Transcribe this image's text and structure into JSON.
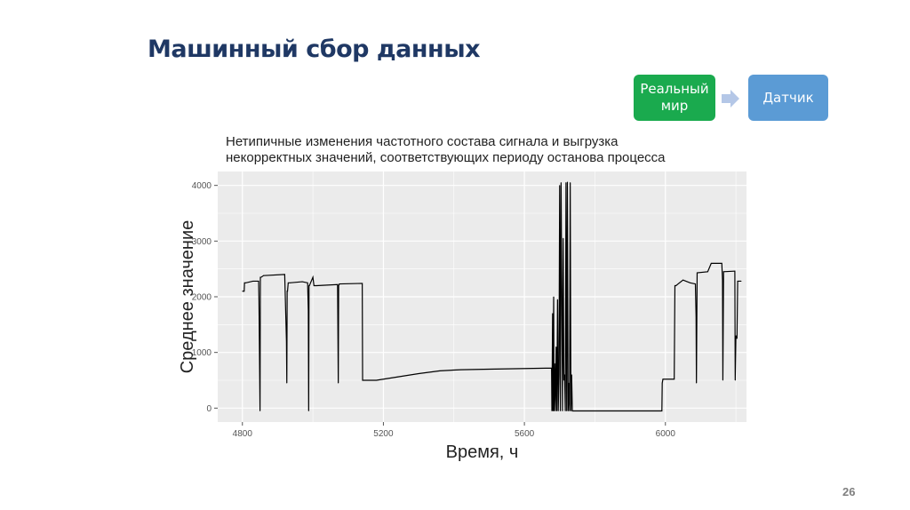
{
  "slide": {
    "title": "Машинный сбор данных",
    "page_number": "26"
  },
  "flow": {
    "step1": "Реальный мир",
    "step2": "Датчик",
    "step1_color": "#1aaa4e",
    "step2_color": "#5b9bd5",
    "arrow_icon": "arrow-right-icon"
  },
  "chart_data": {
    "type": "line",
    "title": "Нетипичные изменения частотного состава сигнала и выгрузка некорректных значений, соответствующих периоду останова процесса",
    "title_line1": "Нетипичные изменения частотного состава сигнала и выгрузка",
    "title_line2": "некорректных значений, соответствующих периоду останова процесса",
    "xlabel": "Время, ч",
    "ylabel": "Среднее значение",
    "xlim": [
      4730,
      6230
    ],
    "ylim": [
      -250,
      4250
    ],
    "xticks": [
      "4800",
      "5200",
      "5600",
      "6000"
    ],
    "yticks": [
      "0",
      "1000",
      "2000",
      "3000",
      "4000"
    ],
    "grid": true,
    "x": [
      4800,
      4805,
      4806,
      4810,
      4830,
      4846,
      4847,
      4850,
      4851,
      4853,
      4860,
      4920,
      4925,
      4926,
      4927,
      4928,
      4930,
      4935,
      4970,
      4985,
      4987,
      4988,
      4989,
      4990,
      5000,
      5003,
      5010,
      5070,
      5072,
      5073,
      5075,
      5140,
      5141,
      5180,
      5240,
      5300,
      5360,
      5420,
      5500,
      5677,
      5678,
      5680,
      5681,
      5683,
      5684,
      5686,
      5688,
      5690,
      5692,
      5694,
      5696,
      5698,
      5700,
      5702,
      5704,
      5706,
      5708,
      5710,
      5712,
      5714,
      5716,
      5718,
      5720,
      5722,
      5724,
      5726,
      5728,
      5730,
      5732,
      5734,
      5736,
      5738,
      5990,
      5991,
      5993,
      6025,
      6027,
      6030,
      6050,
      6070,
      6085,
      6087,
      6088,
      6090,
      6120,
      6130,
      6160,
      6162,
      6163,
      6165,
      6195,
      6197,
      6198,
      6200,
      6203,
      6205,
      6215
    ],
    "y": [
      2100,
      2100,
      2250,
      2250,
      2280,
      2280,
      1950,
      -50,
      2350,
      2350,
      2380,
      2400,
      1200,
      450,
      2100,
      2100,
      2250,
      2250,
      2270,
      2250,
      1750,
      -50,
      2200,
      2200,
      2350,
      2200,
      2200,
      2220,
      450,
      2200,
      2230,
      2240,
      500,
      500,
      560,
      620,
      670,
      690,
      700,
      720,
      -50,
      1700,
      -50,
      2000,
      -50,
      800,
      -50,
      1100,
      -50,
      1950,
      -50,
      600,
      4000,
      -50,
      4050,
      2150,
      -50,
      3050,
      500,
      600,
      -50,
      4050,
      -50,
      4060,
      -50,
      450,
      -50,
      4050,
      -50,
      600,
      -50,
      -50,
      -50,
      450,
      520,
      520,
      2200,
      2200,
      2300,
      2250,
      2230,
      1650,
      450,
      2430,
      2450,
      2600,
      2600,
      2300,
      500,
      2450,
      2460,
      2460,
      500,
      1300,
      1250,
      2280,
      2280
    ]
  }
}
